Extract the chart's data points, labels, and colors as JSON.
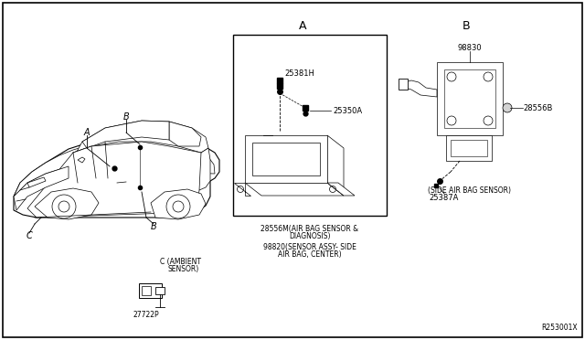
{
  "background_color": "#ffffff",
  "text_color": "#000000",
  "ref_label": "R253001X",
  "section_A_label": "A",
  "section_B_label": "B",
  "part_25381H": "25381H",
  "part_25350A": "25350A",
  "part_28556M_1": "28556M(AIR BAG SENSOR &",
  "part_28556M_2": "DIAGNOSIS)",
  "part_98820_1": "98820(SENSOR ASSY- SIDE",
  "part_98820_2": "AIR BAG, CENTER)",
  "part_98830": "98830",
  "part_28556B": "28556B",
  "part_25387A": "25387A",
  "side_sensor_label": "(SIDE AIR BAG SENSOR)",
  "ambient_label_1": "C (AMBIENT",
  "ambient_label_2": "SENSOR)",
  "part_27722P": "27722P",
  "label_A": "A",
  "label_B": "B",
  "label_C": "C"
}
